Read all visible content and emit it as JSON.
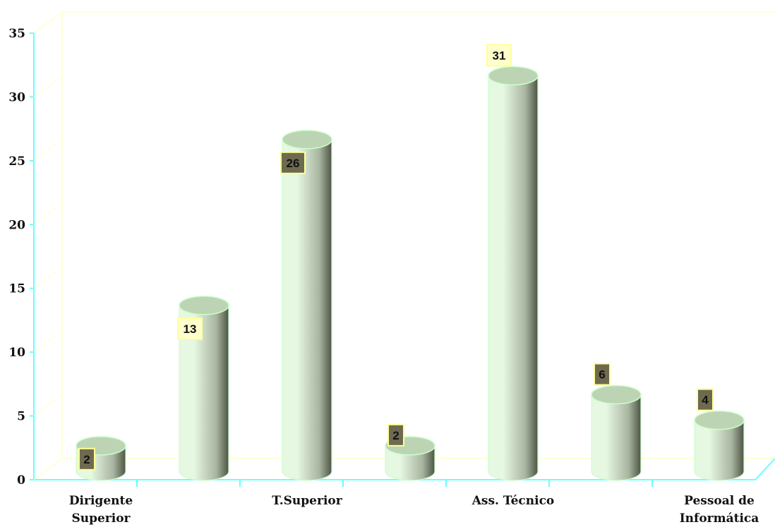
{
  "chart_data": {
    "type": "bar",
    "bar_shape": "cylinder",
    "title": "",
    "xlabel": "",
    "ylabel": "",
    "ylim": [
      0,
      35
    ],
    "yticks": [
      0,
      5,
      10,
      15,
      20,
      25,
      30,
      35
    ],
    "grid": false,
    "legend": "none",
    "categories": [
      "Dirigente Superior",
      "",
      "T.Superior",
      "",
      "Ass. Técnico",
      "",
      "Pessoal de Informática"
    ],
    "category_label_lines": [
      [
        "Dirigente",
        "Superior"
      ],
      [],
      [
        "T.Superior"
      ],
      [],
      [
        "Ass. Técnico"
      ],
      [],
      [
        "Pessoal de",
        "Informática"
      ]
    ],
    "values": [
      2,
      13,
      26,
      2,
      31,
      6,
      4
    ],
    "data_labels": [
      "2",
      "13",
      "26",
      "2",
      "31",
      "6",
      "4"
    ],
    "colors": {
      "bar_light": "#e6f7e2",
      "bar_mid": "#a8b5a0",
      "bar_dark": "#4d5444",
      "bar_top": "#bcd4b4",
      "bar_edge": "#ccffcc",
      "axis": "#66ffff",
      "wall": "#ffffcc",
      "label_box_dark": "#6e6a50",
      "label_box_light": "#ffffcc",
      "label_border": "#ffff99"
    }
  }
}
